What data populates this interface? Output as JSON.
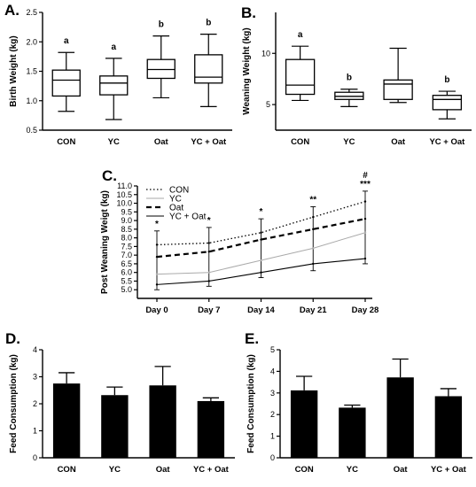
{
  "panels": {
    "A": "A.",
    "B": "B.",
    "C": "C.",
    "D": "D.",
    "E": "E."
  },
  "chart_data": [
    {
      "id": "A",
      "type": "box",
      "ylabel": "Birth Weight (kg)",
      "ylim": [
        0.5,
        2.5
      ],
      "yticks": [
        "0.5",
        "1.0",
        "1.5",
        "2.0",
        "2.5"
      ],
      "categories": [
        "CON",
        "YC",
        "Oat",
        "YC + Oat"
      ],
      "boxes": [
        {
          "min": 0.82,
          "q1": 1.08,
          "median": 1.35,
          "q3": 1.52,
          "max": 1.82
        },
        {
          "min": 0.68,
          "q1": 1.1,
          "median": 1.3,
          "q3": 1.42,
          "max": 1.72
        },
        {
          "min": 1.05,
          "q1": 1.38,
          "median": 1.53,
          "q3": 1.7,
          "max": 2.1
        },
        {
          "min": 0.9,
          "q1": 1.3,
          "median": 1.4,
          "q3": 1.78,
          "max": 2.13
        }
      ],
      "letters": [
        "a",
        "a",
        "b",
        "b"
      ]
    },
    {
      "id": "B",
      "type": "box",
      "ylabel": "Weaning Weight (kg)",
      "ylim": [
        2.5,
        14
      ],
      "yticks": [
        "5",
        "10"
      ],
      "categories": [
        "CON",
        "YC",
        "Oat",
        "YC + Oat"
      ],
      "boxes": [
        {
          "min": 5.4,
          "q1": 6.0,
          "median": 6.9,
          "q3": 9.4,
          "max": 10.7
        },
        {
          "min": 4.8,
          "q1": 5.5,
          "median": 5.8,
          "q3": 6.2,
          "max": 6.5
        },
        {
          "min": 5.2,
          "q1": 5.5,
          "median": 7.0,
          "q3": 7.4,
          "max": 10.5
        },
        {
          "min": 3.6,
          "q1": 4.5,
          "median": 5.5,
          "q3": 5.9,
          "max": 6.3
        }
      ],
      "letters": [
        "a",
        "b",
        "",
        "b"
      ]
    },
    {
      "id": "C",
      "type": "line",
      "ylabel": "Post Weaning Weigt  (kg)",
      "ylim": [
        4.5,
        11.0
      ],
      "yticks": [
        "5.0",
        "5.5",
        "6.0",
        "6.5",
        "7.0",
        "7.5",
        "8.0",
        "8.5",
        "9.0",
        "9.5",
        "10.0",
        "10.5",
        "11.0"
      ],
      "categories": [
        "Day 0",
        "Day 7",
        "Day 14",
        "Day 21",
        "Day 28"
      ],
      "series": [
        {
          "name": "CON",
          "values": [
            7.6,
            7.7,
            8.3,
            9.2,
            10.1
          ]
        },
        {
          "name": "YC",
          "values": [
            5.9,
            6.0,
            6.7,
            7.4,
            8.3
          ]
        },
        {
          "name": "Oat",
          "values": [
            6.9,
            7.2,
            7.9,
            8.5,
            9.1
          ]
        },
        {
          "name": "YC + Oat",
          "values": [
            5.3,
            5.5,
            6.0,
            6.5,
            6.8
          ]
        }
      ],
      "error": [
        {
          "low": 5.0,
          "high": 8.4
        },
        {
          "low": 5.2,
          "high": 8.6
        },
        {
          "low": 5.7,
          "high": 9.1
        },
        {
          "low": 6.1,
          "high": 9.8
        },
        {
          "low": 6.5,
          "high": 10.7
        }
      ],
      "annotations": [
        "*",
        "*",
        "*",
        "**",
        "#\n***"
      ]
    },
    {
      "id": "D",
      "type": "bar",
      "ylabel": "Feed Consumption (kg)",
      "ylim": [
        0,
        4
      ],
      "yticks": [
        "0",
        "1",
        "2",
        "3",
        "4"
      ],
      "categories": [
        "CON",
        "YC",
        "Oat",
        "YC + Oat"
      ],
      "values": [
        2.75,
        2.32,
        2.68,
        2.1
      ],
      "errors": [
        0.4,
        0.3,
        0.7,
        0.12
      ]
    },
    {
      "id": "E",
      "type": "bar",
      "ylabel": "Feed Consumption (kg)",
      "ylim": [
        0,
        5
      ],
      "yticks": [
        "0",
        "1",
        "2",
        "3",
        "4",
        "5"
      ],
      "categories": [
        "CON",
        "YC",
        "Oat",
        "YC + Oat"
      ],
      "values": [
        3.12,
        2.32,
        3.72,
        2.85
      ],
      "errors": [
        0.65,
        0.12,
        0.85,
        0.35
      ]
    }
  ]
}
